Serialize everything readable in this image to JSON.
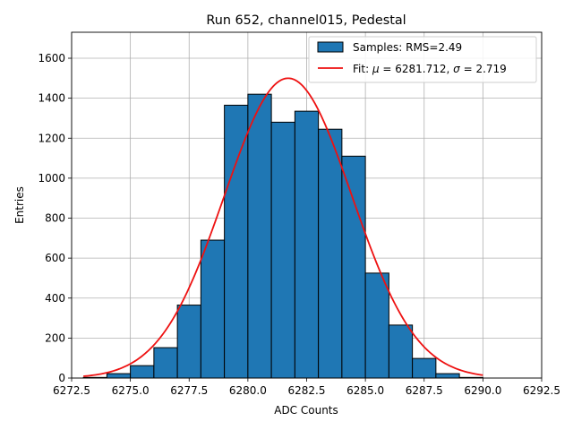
{
  "chart_data": {
    "type": "bar",
    "title": "Run 652, channel015, Pedestal",
    "xlabel": "ADC Counts",
    "ylabel": "Entries",
    "xlim": [
      6272.5,
      6292.5
    ],
    "ylim": [
      0,
      1730
    ],
    "grid": true,
    "legend_position": "top-right",
    "xticks": [
      6272.5,
      6275.0,
      6277.5,
      6280.0,
      6282.5,
      6285.0,
      6287.5,
      6290.0,
      6292.5
    ],
    "xtick_labels": [
      "6272.5",
      "6275.0",
      "6277.5",
      "6280.0",
      "6282.5",
      "6285.0",
      "6287.5",
      "6290.0",
      "6292.5"
    ],
    "yticks": [
      0,
      200,
      400,
      600,
      800,
      1000,
      1200,
      1400,
      1600
    ],
    "ytick_labels": [
      "0",
      "200",
      "400",
      "600",
      "800",
      "1000",
      "1200",
      "1400",
      "1600"
    ],
    "bin_edges": [
      6273,
      6274,
      6275,
      6276,
      6277,
      6278,
      6279,
      6280,
      6281,
      6282,
      6283,
      6284,
      6285,
      6286,
      6287,
      6288,
      6289,
      6290
    ],
    "series": [
      {
        "name": "Samples: RMS=2.49",
        "kind": "histogram",
        "color": "#1f77b4",
        "values": [
          3,
          22,
          62,
          152,
          365,
          690,
          1365,
          1420,
          1280,
          1335,
          1245,
          1110,
          525,
          265,
          98,
          22,
          3
        ]
      },
      {
        "name": "Fit: μ = 6281.712, σ = 2.719",
        "kind": "line",
        "color": "#ee1111",
        "mu": 6281.712,
        "sigma": 2.719,
        "amplitude": 1500,
        "x_range": [
          6273,
          6290
        ]
      }
    ],
    "legend": {
      "samples_prefix": "Samples: RMS=2.49",
      "fit_prefix": "Fit: ",
      "fit_mu_symbol": "μ",
      "fit_mu_value": " = 6281.712, ",
      "fit_sigma_symbol": "σ",
      "fit_sigma_value": " = 2.719"
    },
    "colors": {
      "bar_fill": "#1f77b4",
      "bar_edge": "#000000",
      "fit_line": "#ee1111",
      "grid": "#b0b0b0"
    }
  }
}
